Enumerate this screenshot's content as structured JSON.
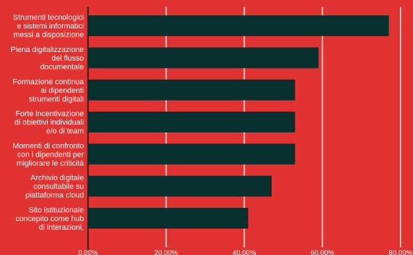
{
  "chart_data": {
    "type": "bar",
    "orientation": "horizontal",
    "categories": [
      [
        "Strumenti tecnologici",
        "e sistemi informatici",
        "messi a disposizione"
      ],
      [
        "Piena digitalizzazione",
        "del flusso",
        "documentale"
      ],
      [
        "Formazione continua",
        "ai dipendenti",
        "strumenti digitali"
      ],
      [
        "Forte incentivazione",
        "di obiettivi individuali",
        "e/o di team"
      ],
      [
        "Momenti di confronto",
        "con i dipendenti per",
        "migliorare le criticità"
      ],
      [
        "Archivio digitale",
        "consultabile su",
        "piattaforma cloud"
      ],
      [
        "Sito istituzionale",
        "concepito come hub",
        "di interazioni,"
      ]
    ],
    "values": [
      77,
      59,
      53,
      53,
      53,
      47,
      41
    ],
    "xlim": [
      0,
      80
    ],
    "xticks": [
      "0.00%",
      "20.00%",
      "40.00%",
      "60.00%",
      "80.00%"
    ],
    "grid": true,
    "colors": {
      "background": "#e03331",
      "bar": "#07302f",
      "grid": "#f2c4c4",
      "axis": "#3a1a1a",
      "text": "#ffffff"
    }
  }
}
